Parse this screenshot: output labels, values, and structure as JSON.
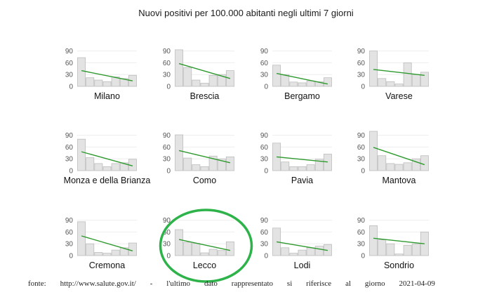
{
  "page": {
    "title": "Nuovi positivi per 100.000 abitanti negli ultimi 7 giorni",
    "footer_words": [
      "fonte:",
      "http://www.salute.gov.it/",
      "-",
      "l'ultimo",
      "dato",
      "rappresentato",
      "si",
      "riferisce",
      "al",
      "giorno",
      "2021-04-09"
    ]
  },
  "chart_data": {
    "type": "bar",
    "title": "Nuovi positivi per 100.000 abitanti negli ultimi 7 giorni",
    "ylim": [
      0,
      100
    ],
    "yticks": [
      0,
      30,
      60,
      90
    ],
    "grid": true,
    "colors": {
      "bar_fill": "#e3e3e3",
      "bar_stroke": "#bdbdbd",
      "trend": "#2e9a2e",
      "grid": "#eeeeee",
      "annotation": "#2db34a"
    },
    "annotation": {
      "type": "ellipse",
      "target": "Lecco"
    },
    "panels": [
      {
        "name": "Milano",
        "values": [
          73,
          22,
          16,
          12,
          24,
          20,
          28
        ],
        "trend": [
          40,
          14
        ]
      },
      {
        "name": "Brescia",
        "values": [
          93,
          48,
          16,
          8,
          28,
          30,
          40
        ],
        "trend": [
          58,
          20
        ]
      },
      {
        "name": "Bergamo",
        "values": [
          54,
          30,
          11,
          9,
          14,
          12,
          22
        ],
        "trend": [
          33,
          6
        ]
      },
      {
        "name": "Varese",
        "values": [
          90,
          20,
          12,
          6,
          60,
          30,
          36
        ],
        "trend": [
          43,
          28
        ]
      },
      {
        "name": "Monza e della Brianza",
        "values": [
          80,
          33,
          18,
          10,
          18,
          20,
          29
        ],
        "trend": [
          48,
          12
        ]
      },
      {
        "name": "Como",
        "values": [
          91,
          32,
          15,
          10,
          37,
          30,
          35
        ],
        "trend": [
          51,
          20
        ]
      },
      {
        "name": "Pavia",
        "values": [
          70,
          22,
          10,
          10,
          15,
          29,
          42
        ],
        "trend": [
          35,
          22
        ]
      },
      {
        "name": "Mantova",
        "values": [
          104,
          38,
          18,
          16,
          20,
          30,
          38
        ],
        "trend": [
          59,
          15
        ]
      },
      {
        "name": "Cremona",
        "values": [
          86,
          30,
          8,
          6,
          14,
          20,
          32
        ],
        "trend": [
          50,
          12
        ]
      },
      {
        "name": "Lecco",
        "values": [
          66,
          34,
          31,
          7,
          16,
          13,
          35
        ],
        "trend": [
          41,
          13
        ]
      },
      {
        "name": "Lodi",
        "values": [
          70,
          20,
          6,
          14,
          20,
          24,
          28
        ],
        "trend": [
          35,
          13
        ]
      },
      {
        "name": "Sondrio",
        "values": [
          76,
          40,
          30,
          4,
          26,
          30,
          60
        ],
        "trend": [
          44,
          30
        ]
      }
    ]
  }
}
